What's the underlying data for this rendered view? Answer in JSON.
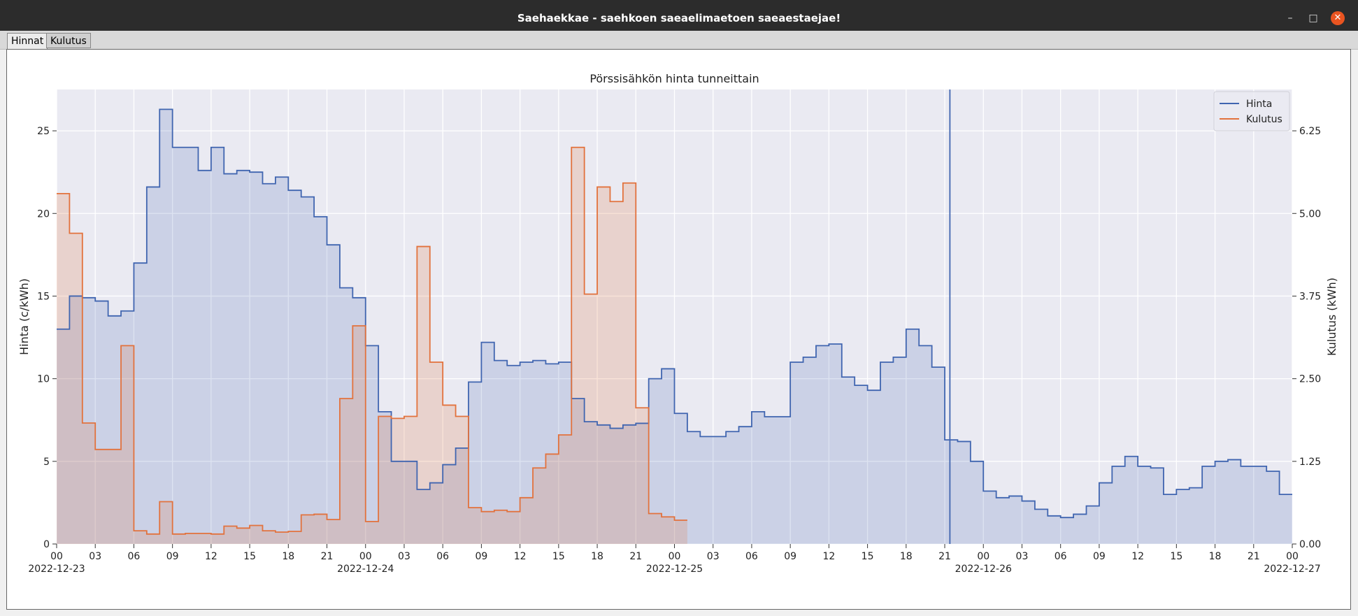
{
  "window": {
    "title": "Saehaekkae - saehkoen saeaelimaetoen saeaestaejae!"
  },
  "tabs": [
    {
      "label": "Hinnat"
    },
    {
      "label": "Kulutus"
    }
  ],
  "colors": {
    "price": "#4065b0",
    "consumption": "#e2723d",
    "axes_bg": "#eaeaf2",
    "grid": "#ffffff"
  },
  "chart_data": {
    "type": "step-area",
    "title": "Pörssisähkön hinta tunneittain",
    "ylabel": "Hinta (c/kWh)",
    "y2label": "Kulutus (kWh)",
    "ylim": [
      0,
      27.5
    ],
    "y2lim": [
      0,
      6.875
    ],
    "yticks": [
      "0",
      "5",
      "10",
      "15",
      "20",
      "25"
    ],
    "y2ticks": [
      "0.00",
      "1.25",
      "2.50",
      "3.75",
      "5.00",
      "6.25"
    ],
    "xlim_hours": [
      0,
      96
    ],
    "xtick_hours": [
      "00",
      "03",
      "06",
      "09",
      "12",
      "15",
      "18",
      "21",
      "00",
      "03",
      "06",
      "09",
      "12",
      "15",
      "18",
      "21",
      "00",
      "03",
      "06",
      "09",
      "12",
      "15",
      "18",
      "21",
      "00",
      "03",
      "06",
      "09",
      "12",
      "15",
      "18",
      "21",
      "00"
    ],
    "date_labels": [
      "2022-12-23",
      "2022-12-24",
      "2022-12-25",
      "2022-12-26",
      "2022-12-27"
    ],
    "current_time_hour": 69.4,
    "legend": {
      "position": "upper right",
      "entries": [
        "Hinta",
        "Kulutus"
      ]
    },
    "grid": true,
    "series": [
      {
        "name": "Hinta",
        "axis": "left",
        "values": [
          13.0,
          15.0,
          14.9,
          14.7,
          13.8,
          14.1,
          17.0,
          21.6,
          26.3,
          24.0,
          24.0,
          22.6,
          24.0,
          22.4,
          22.6,
          22.5,
          21.8,
          22.2,
          21.4,
          21.0,
          19.8,
          18.1,
          15.5,
          14.9,
          12.0,
          8.0,
          5.0,
          5.0,
          3.3,
          3.7,
          4.8,
          5.8,
          9.8,
          12.2,
          11.1,
          10.8,
          11.0,
          11.1,
          10.9,
          11.0,
          8.8,
          7.4,
          7.2,
          7.0,
          7.2,
          7.3,
          10.0,
          10.6,
          7.9,
          6.8,
          6.5,
          6.5,
          6.8,
          7.1,
          8.0,
          7.7,
          7.7,
          11.0,
          11.3,
          12.0,
          12.1,
          10.1,
          9.6,
          9.3,
          11.0,
          11.3,
          13.0,
          12.0,
          10.7,
          6.3,
          6.2,
          5.0,
          3.2,
          2.8,
          2.9,
          2.6,
          2.1,
          1.7,
          1.6,
          1.8,
          2.3,
          3.7,
          4.7,
          5.3,
          4.7,
          4.6,
          3.0,
          3.3,
          3.4,
          4.7,
          5.0,
          5.1,
          4.7,
          4.7,
          4.4,
          3.0
        ]
      },
      {
        "name": "Kulutus",
        "axis": "right",
        "values": [
          5.3,
          4.7,
          1.83,
          1.43,
          1.43,
          3.0,
          0.2,
          0.15,
          0.64,
          0.15,
          0.16,
          0.16,
          0.15,
          0.27,
          0.24,
          0.28,
          0.2,
          0.18,
          0.19,
          0.44,
          0.45,
          0.37,
          2.2,
          3.3,
          0.34,
          1.93,
          1.9,
          1.93,
          4.5,
          2.75,
          2.1,
          1.93,
          0.55,
          0.49,
          0.51,
          0.49,
          0.7,
          1.15,
          1.36,
          1.65,
          6.0,
          3.78,
          5.4,
          5.18,
          5.46,
          2.06,
          0.46,
          0.41,
          0.36
        ]
      }
    ]
  }
}
